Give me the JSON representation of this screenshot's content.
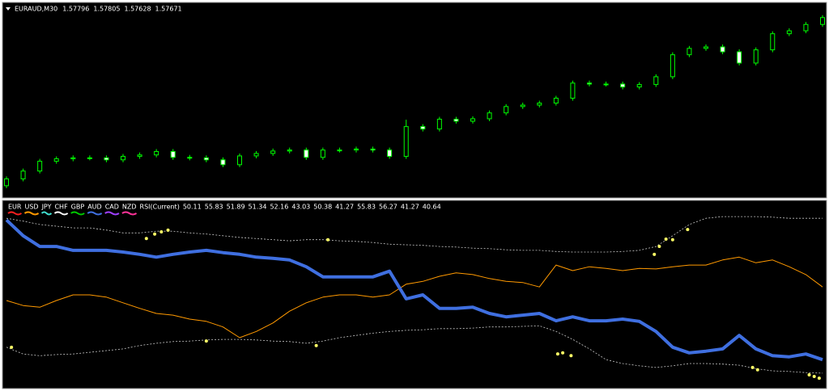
{
  "chart_data": [
    {
      "type": "candlestick",
      "title": "EURAUD,M30",
      "header_values": [
        1.57796,
        1.57805,
        1.57628,
        1.57671
      ],
      "ylim": [
        1.54,
        1.58
      ],
      "color": "#00ff00",
      "bull_fill": "#000000",
      "bear_fill": "#ffffff",
      "open": [
        1.5425,
        1.5439,
        1.5455,
        1.5475,
        1.548,
        1.5482,
        1.5482,
        1.5478,
        1.5485,
        1.5488,
        1.5495,
        1.5483,
        1.5482,
        1.5478,
        1.5468,
        1.5486,
        1.5491,
        1.5496,
        1.5498,
        1.5483,
        1.5498,
        1.5498,
        1.55,
        1.5498,
        1.5485,
        1.5546,
        1.5541,
        1.5561,
        1.5557,
        1.5562,
        1.5574,
        1.5587,
        1.559,
        1.5594,
        1.5604,
        1.5635,
        1.5633,
        1.5633,
        1.5627,
        1.5632,
        1.5648,
        1.5693,
        1.5706,
        1.5709,
        1.5699,
        1.5676,
        1.5703,
        1.5736,
        1.5742,
        1.5755
      ],
      "high": [
        1.5444,
        1.546,
        1.548,
        1.5485,
        1.5487,
        1.5487,
        1.5487,
        1.549,
        1.5493,
        1.55,
        1.55,
        1.5488,
        1.5487,
        1.5483,
        1.5491,
        1.5496,
        1.5501,
        1.5503,
        1.5503,
        1.5503,
        1.5503,
        1.5505,
        1.5505,
        1.5503,
        1.556,
        1.5551,
        1.5566,
        1.5566,
        1.5567,
        1.5579,
        1.5592,
        1.5595,
        1.5599,
        1.5609,
        1.564,
        1.564,
        1.5638,
        1.5638,
        1.5637,
        1.5653,
        1.5698,
        1.5711,
        1.5714,
        1.5714,
        1.5704,
        1.5708,
        1.5741,
        1.5747,
        1.576,
        1.5774
      ],
      "low": [
        1.542,
        1.5434,
        1.545,
        1.547,
        1.5475,
        1.5477,
        1.5473,
        1.5473,
        1.548,
        1.5483,
        1.5478,
        1.5477,
        1.5473,
        1.5463,
        1.5463,
        1.5481,
        1.5486,
        1.5491,
        1.5478,
        1.5478,
        1.5493,
        1.5493,
        1.5493,
        1.548,
        1.548,
        1.5536,
        1.5536,
        1.5552,
        1.5552,
        1.5557,
        1.5569,
        1.5582,
        1.5585,
        1.5589,
        1.5599,
        1.5628,
        1.5628,
        1.5622,
        1.5622,
        1.5627,
        1.5643,
        1.5688,
        1.5701,
        1.5694,
        1.5671,
        1.5671,
        1.5698,
        1.5731,
        1.5737,
        1.575
      ],
      "close": [
        1.5439,
        1.5455,
        1.5475,
        1.548,
        1.5482,
        1.5482,
        1.5478,
        1.5485,
        1.5488,
        1.5495,
        1.5483,
        1.5482,
        1.5478,
        1.5468,
        1.5486,
        1.5491,
        1.5496,
        1.5498,
        1.5483,
        1.5498,
        1.5498,
        1.55,
        1.5498,
        1.5485,
        1.5546,
        1.5541,
        1.5561,
        1.5557,
        1.5562,
        1.5574,
        1.5587,
        1.559,
        1.5594,
        1.5604,
        1.5635,
        1.5633,
        1.5633,
        1.5627,
        1.5632,
        1.5648,
        1.5693,
        1.5706,
        1.5709,
        1.5699,
        1.5676,
        1.5703,
        1.5736,
        1.5742,
        1.5755,
        1.5769
      ]
    },
    {
      "type": "line",
      "indicator_label": "RSI(Current)",
      "indicator_values": [
        50.11,
        55.83,
        51.89,
        51.34,
        52.16,
        43.03,
        50.38,
        41.27,
        55.83,
        56.27,
        41.27,
        40.64
      ],
      "ylim": [
        38,
        71
      ],
      "series": [
        {
          "name": "EUR",
          "color": "#ff2020"
        },
        {
          "name": "USD",
          "color": "#ff9900",
          "width": 1,
          "values": [
            53.5,
            52.6,
            52.3,
            53.5,
            54.5,
            54.5,
            54.1,
            53.1,
            52.1,
            51.2,
            50.9,
            50.2,
            49.8,
            48.8,
            46.9,
            48.0,
            49.5,
            51.6,
            53.1,
            54.1,
            54.5,
            54.5,
            54.1,
            54.5,
            56.4,
            56.9,
            57.8,
            58.4,
            58.1,
            57.4,
            56.9,
            56.7,
            55.9,
            59.8,
            58.8,
            59.5,
            59.2,
            58.8,
            59.2,
            59.1,
            59.5,
            59.8,
            59.8,
            60.7,
            61.2,
            60.2,
            60.7,
            59.5,
            58.1,
            55.9
          ]
        },
        {
          "name": "JPY",
          "color": "#40e0d0"
        },
        {
          "name": "CHF",
          "color": "#ffffff"
        },
        {
          "name": "GBP",
          "color": "#00cc00"
        },
        {
          "name": "AUD",
          "color": "#3f6fe0",
          "width": 4,
          "values": [
            67.8,
            65.0,
            63.1,
            63.1,
            62.4,
            62.4,
            62.4,
            62.1,
            61.7,
            61.2,
            61.7,
            62.1,
            62.4,
            62.0,
            61.7,
            61.2,
            61.0,
            60.7,
            59.5,
            57.7,
            57.7,
            57.7,
            57.7,
            58.7,
            53.8,
            54.5,
            52.1,
            52.1,
            52.3,
            51.2,
            50.6,
            50.9,
            51.2,
            49.9,
            50.6,
            49.9,
            49.9,
            50.2,
            49.8,
            48.0,
            45.2,
            44.2,
            44.5,
            44.9,
            47.3,
            44.9,
            43.7,
            43.5,
            44.0,
            43.0
          ]
        },
        {
          "name": "CAD",
          "color": "#a040ff"
        },
        {
          "name": "NZD",
          "color": "#ff3399"
        }
      ],
      "band_color": "#c8c8c8",
      "upper_band": [
        68.1,
        67.6,
        67.0,
        66.7,
        66.4,
        66.4,
        66.0,
        65.5,
        65.5,
        65.8,
        65.8,
        65.5,
        65.3,
        65.0,
        64.7,
        64.5,
        64.3,
        64.1,
        64.3,
        64.3,
        64.1,
        64.0,
        63.8,
        63.5,
        63.4,
        63.3,
        63.1,
        63.0,
        62.8,
        62.7,
        62.5,
        62.4,
        62.4,
        62.2,
        62.1,
        62.1,
        62.1,
        62.2,
        62.4,
        63.1,
        65.0,
        67.0,
        68.1,
        68.4,
        68.4,
        68.4,
        68.3,
        68.1,
        68.1,
        68.1
      ],
      "lower_band": [
        45.2,
        44.0,
        43.7,
        43.9,
        44.0,
        44.3,
        44.6,
        44.9,
        45.5,
        45.9,
        46.2,
        46.3,
        46.5,
        46.6,
        46.6,
        46.5,
        46.3,
        46.2,
        45.9,
        46.3,
        46.9,
        47.3,
        47.7,
        48.0,
        48.2,
        48.3,
        48.5,
        48.5,
        48.6,
        48.8,
        48.8,
        48.9,
        49.0,
        48.0,
        46.6,
        44.9,
        43.0,
        42.3,
        41.9,
        41.6,
        41.9,
        42.3,
        42.3,
        42.2,
        42.0,
        41.4,
        41.0,
        40.9,
        40.7,
        40.6
      ],
      "signals": {
        "color": "#ffff66",
        "x": [
          8.4,
          8.9,
          9.3,
          9.7,
          19.3,
          38.9,
          39.2,
          39.6,
          40.0,
          40.9,
          0.3,
          12.0,
          18.6,
          33.1,
          33.4,
          33.9,
          44.8,
          45.1,
          48.2,
          48.5,
          48.8
        ],
        "values": [
          64.5,
          65.3,
          65.7,
          66.0,
          64.3,
          61.7,
          63.1,
          64.4,
          64.3,
          66.1,
          45.2,
          46.3,
          45.5,
          44.0,
          44.2,
          43.7,
          41.6,
          41.2,
          40.3,
          40.0,
          39.7
        ]
      }
    }
  ]
}
